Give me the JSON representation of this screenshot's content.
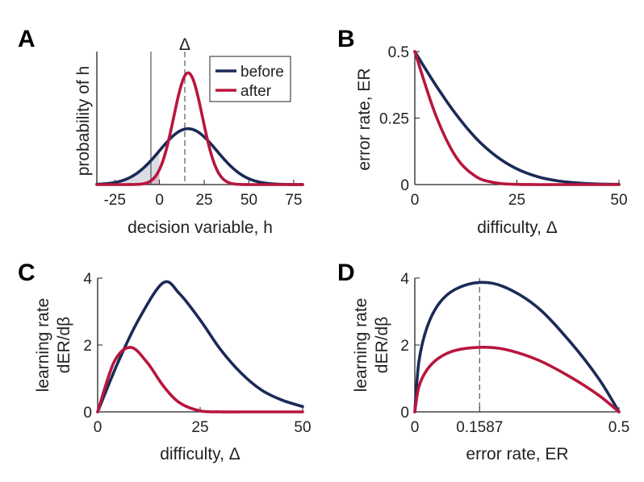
{
  "chart_data": [
    {
      "panel": "A",
      "type": "line",
      "xlabel": "decision variable, h",
      "ylabel": "probability of h",
      "xlim": [
        -35,
        80
      ],
      "xticks": [
        -25,
        0,
        25,
        50,
        75
      ],
      "xtick_labels": [
        "-25",
        "0",
        "25",
        "50",
        "75"
      ],
      "annotation": "Δ",
      "vlines": {
        "solid_at": 0,
        "dashed_at": 16
      },
      "legend": {
        "placement": "top-right",
        "entries": [
          "before",
          "after"
        ]
      },
      "series": [
        {
          "name": "before",
          "color": "#1b2a57",
          "distribution": "normal",
          "mean": 16,
          "sd": 16
        },
        {
          "name": "after",
          "color": "#b8163d",
          "distribution": "normal",
          "mean": 16,
          "sd": 8
        }
      ]
    },
    {
      "panel": "B",
      "type": "line",
      "xlabel": "difficulty,  Δ",
      "ylabel": "error rate, ER",
      "xlim": [
        0,
        50
      ],
      "ylim": [
        0,
        0.5
      ],
      "xticks": [
        0,
        25,
        50
      ],
      "xtick_labels": [
        "0",
        "25",
        "50"
      ],
      "yticks": [
        0,
        0.25,
        0.5
      ],
      "ytick_labels": [
        "0",
        "0.25",
        "0.5"
      ],
      "series": [
        {
          "name": "before",
          "color": "#1b2a57",
          "x": [
            0,
            5,
            10,
            15,
            20,
            25,
            30,
            35,
            40,
            45,
            50
          ],
          "y": [
            0.5,
            0.377,
            0.266,
            0.174,
            0.106,
            0.059,
            0.03,
            0.014,
            0.006,
            0.002,
            0.001
          ]
        },
        {
          "name": "after",
          "color": "#b8163d",
          "x": [
            0,
            5,
            10,
            15,
            20,
            25,
            30,
            35,
            40,
            45,
            50
          ],
          "y": [
            0.5,
            0.266,
            0.106,
            0.03,
            0.006,
            0.001,
            0.0,
            0.0,
            0.0,
            0.0,
            0.0
          ]
        }
      ]
    },
    {
      "panel": "C",
      "type": "line",
      "xlabel": "difficulty,  Δ",
      "ylabel_lines": [
        "learning rate",
        "dER/dβ"
      ],
      "xlim": [
        0,
        50
      ],
      "ylim": [
        0,
        4
      ],
      "xticks": [
        0,
        25,
        50
      ],
      "xtick_labels": [
        "0",
        "25",
        "50"
      ],
      "yticks": [
        0,
        2,
        4
      ],
      "ytick_labels": [
        "0",
        "2",
        "4"
      ],
      "series": [
        {
          "name": "before",
          "color": "#1b2a57",
          "x": [
            0,
            5,
            10,
            16,
            20,
            25,
            30,
            35,
            40,
            45,
            50
          ],
          "y": [
            0,
            1.49,
            2.76,
            3.86,
            3.53,
            2.75,
            1.86,
            1.16,
            0.65,
            0.35,
            0.16
          ]
        },
        {
          "name": "after",
          "color": "#b8163d",
          "x": [
            0,
            4,
            8,
            12,
            16,
            20,
            25,
            30,
            35,
            40,
            50
          ],
          "y": [
            0,
            1.49,
            1.93,
            1.49,
            0.78,
            0.27,
            0.03,
            0.0,
            0.0,
            0.0,
            0.0
          ]
        }
      ]
    },
    {
      "panel": "D",
      "type": "line",
      "xlabel": "error rate, ER",
      "ylabel_lines": [
        "learning rate",
        "dER/dβ"
      ],
      "xlim": [
        0,
        0.5
      ],
      "ylim": [
        0,
        4
      ],
      "xticks": [
        0,
        0.1587,
        0.5
      ],
      "xtick_labels": [
        "0",
        "0.1587",
        "0.5"
      ],
      "yticks": [
        0,
        2,
        4
      ],
      "ytick_labels": [
        "0",
        "2",
        "4"
      ],
      "vlines": {
        "dashed_at": 0.1587
      },
      "series": [
        {
          "name": "before",
          "color": "#1b2a57",
          "x": [
            0,
            0.01,
            0.03,
            0.06,
            0.1,
            0.1587,
            0.22,
            0.3,
            0.38,
            0.45,
            0.5
          ],
          "y": [
            0,
            1.5,
            2.53,
            3.25,
            3.67,
            3.87,
            3.73,
            3.13,
            2.1,
            1.0,
            0
          ]
        },
        {
          "name": "after",
          "color": "#b8163d",
          "x": [
            0,
            0.01,
            0.03,
            0.06,
            0.1,
            0.1587,
            0.22,
            0.3,
            0.38,
            0.45,
            0.5
          ],
          "y": [
            0,
            0.75,
            1.26,
            1.62,
            1.84,
            1.93,
            1.87,
            1.56,
            1.05,
            0.5,
            0
          ]
        }
      ]
    }
  ]
}
